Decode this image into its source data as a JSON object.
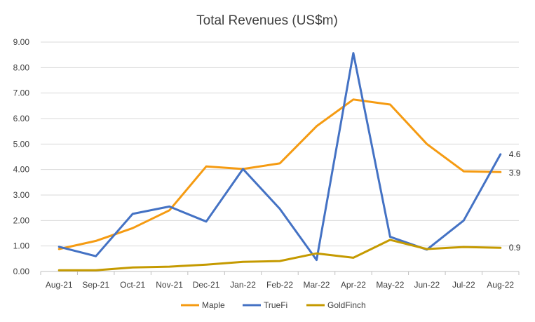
{
  "chart_data": {
    "type": "line",
    "title": "Total Revenues (US$m)",
    "xlabel": "",
    "ylabel": "",
    "categories": [
      "Aug-21",
      "Sep-21",
      "Oct-21",
      "Nov-21",
      "Dec-21",
      "Jan-22",
      "Feb-22",
      "Mar-22",
      "Apr-22",
      "May-22",
      "Jun-22",
      "Jul-22",
      "Aug-22"
    ],
    "ylim": [
      0,
      9
    ],
    "yticks": [
      "0.00",
      "1.00",
      "2.00",
      "3.00",
      "4.00",
      "5.00",
      "6.00",
      "7.00",
      "8.00",
      "9.00"
    ],
    "grid": "horizontal",
    "legend_position": "bottom",
    "series": [
      {
        "name": "Maple",
        "color": "#F59B12",
        "values": [
          0.88,
          1.2,
          1.7,
          2.4,
          4.12,
          4.02,
          4.24,
          5.7,
          6.75,
          6.55,
          5.0,
          3.93,
          3.9
        ]
      },
      {
        "name": "TrueFi",
        "color": "#4472C4",
        "values": [
          0.97,
          0.6,
          2.26,
          2.55,
          1.96,
          4.02,
          2.46,
          0.45,
          8.57,
          1.36,
          0.86,
          2.0,
          4.6
        ]
      },
      {
        "name": "GoldFinch",
        "color": "#C59A00",
        "values": [
          0.05,
          0.05,
          0.16,
          0.19,
          0.27,
          0.38,
          0.41,
          0.71,
          0.54,
          1.24,
          0.88,
          0.96,
          0.93
        ]
      }
    ],
    "end_labels": [
      "3.9",
      "4.6",
      "0.9"
    ]
  }
}
